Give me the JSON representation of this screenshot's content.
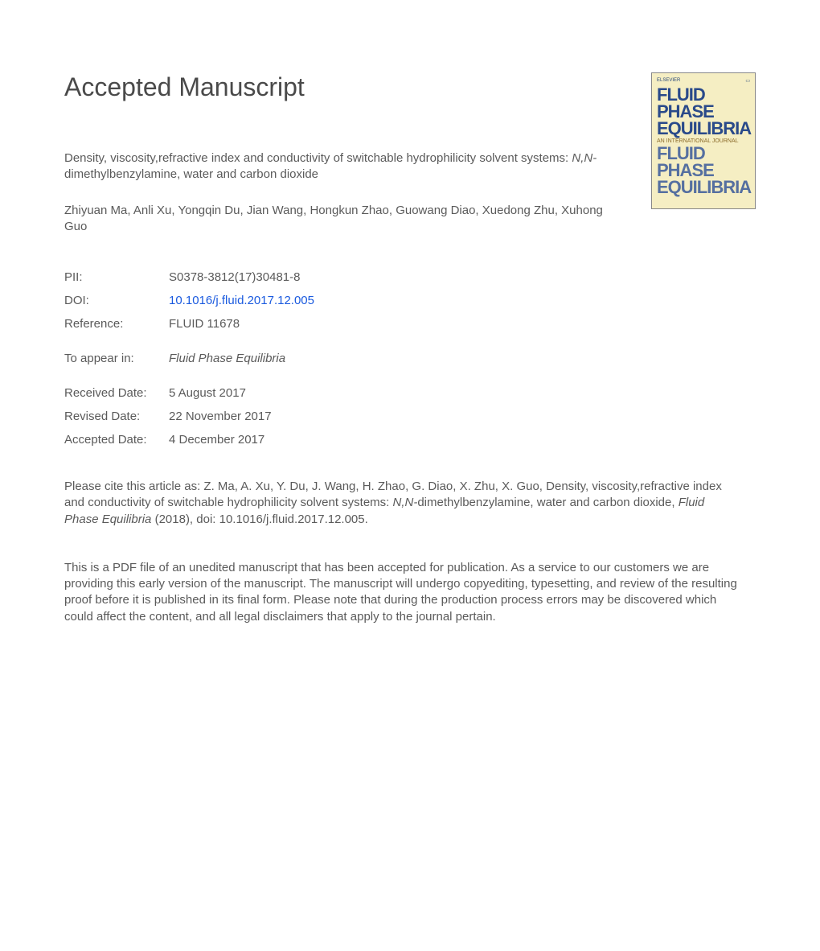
{
  "heading": "Accepted Manuscript",
  "journal_cover": {
    "publisher": "ELSEVIER",
    "line1": "FLUID PHASE",
    "line2": "EQUILIBRIA",
    "subtitle": "AN INTERNATIONAL JOURNAL",
    "line3": "FLUID PHASE",
    "line4": "EQUILIBRIA",
    "bg_color": "#f5eec3",
    "title_color": "#2a4a8a"
  },
  "article": {
    "title_pre": "Density, viscosity,refractive index and conductivity of switchable hydrophilicity solvent systems: ",
    "title_ital": "N,N-",
    "title_post": " dimethylbenzylamine, water and carbon dioxide",
    "authors": "Zhiyuan Ma, Anli Xu, Yongqin Du, Jian Wang, Hongkun Zhao, Guowang Diao, Xuedong Zhu, Xuhong Guo"
  },
  "meta": {
    "pii_label": "PII:",
    "pii": "S0378-3812(17)30481-8",
    "doi_label": "DOI:",
    "doi": "10.1016/j.fluid.2017.12.005",
    "ref_label": "Reference:",
    "ref": "FLUID 11678",
    "appear_label": "To appear in:",
    "appear": "Fluid Phase Equilibria",
    "received_label": "Received Date:",
    "received": "5 August 2017",
    "revised_label": "Revised Date:",
    "revised": "22 November 2017",
    "accepted_label": "Accepted Date:",
    "accepted": "4 December 2017"
  },
  "citation": {
    "pre": "Please cite this article as: Z. Ma, A. Xu, Y. Du, J. Wang, H. Zhao, G. Diao, X. Zhu, X. Guo, Density, viscosity,refractive index and conductivity of switchable hydrophilicity solvent systems: ",
    "ital1": "N,N-",
    "mid": "dimethylbenzylamine, water and carbon dioxide, ",
    "ital2": "Fluid Phase Equilibria",
    "post": " (2018), doi: 10.1016/j.fluid.2017.12.005."
  },
  "disclaimer": "This is a PDF file of an unedited manuscript that has been accepted for publication. As a service to our customers we are providing this early version of the manuscript. The manuscript will undergo copyediting, typesetting, and review of the resulting proof before it is published in its final form. Please note that during the production process errors may be discovered which could affect the content, and all legal disclaimers that apply to the journal pertain."
}
